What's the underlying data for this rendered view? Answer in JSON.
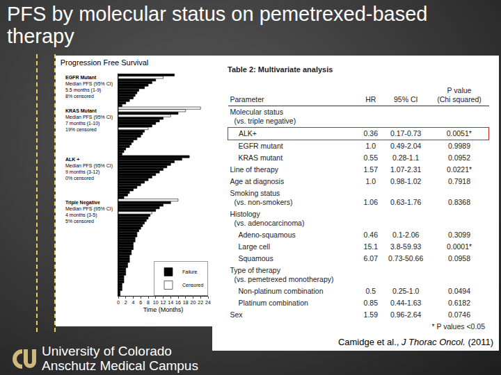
{
  "slide_title": "PFS by molecular status on pemetrexed-based therapy",
  "chart_data": {
    "type": "bar",
    "orientation": "horizontal",
    "title": "Progression Free Survival",
    "x_label": "Time (Months)",
    "categories": [
      null,
      null,
      null,
      null,
      null,
      null,
      null,
      null,
      null,
      null,
      null,
      null,
      null,
      null,
      null,
      null,
      null,
      null,
      null,
      null,
      null,
      null,
      null,
      null,
      null,
      null,
      null,
      null,
      null,
      null,
      null,
      null,
      null,
      null,
      null,
      null,
      null,
      null,
      null,
      null,
      null,
      null,
      null,
      null,
      null,
      null,
      null,
      null,
      null,
      null,
      null,
      null,
      null,
      null,
      null,
      null,
      null,
      null,
      null,
      null,
      null,
      null,
      null,
      null,
      null,
      null,
      null,
      null,
      null,
      null,
      null,
      null,
      null,
      null,
      null,
      null,
      null,
      null,
      null,
      null,
      null,
      null,
      null,
      null,
      null,
      null,
      null
    ],
    "series": [
      {
        "name": "Failure",
        "color": "#000000",
        "values": [
          15,
          null,
          10,
          9,
          8,
          7,
          5.5,
          5,
          4.5,
          4,
          3,
          2,
          1,
          null,
          null,
          16,
          null,
          12,
          11,
          10,
          9,
          null,
          7,
          6.5,
          6,
          5,
          4,
          3.5,
          3,
          2,
          1.5,
          1,
          19,
          17,
          15,
          14,
          13,
          12,
          11,
          10,
          9,
          8,
          7,
          6,
          5,
          4,
          3,
          2.5,
          1.5,
          null,
          14,
          12,
          11,
          10,
          null,
          8.5,
          8,
          7.5,
          7,
          6.5,
          6,
          5.5,
          5,
          5,
          4.5,
          4.5,
          4,
          4,
          4,
          3.5,
          3.5,
          3,
          3,
          3,
          2.5,
          2.5,
          2,
          2,
          2,
          1.5,
          1.5,
          1.5,
          1,
          1,
          1,
          0.5,
          0.5
        ]
      },
      {
        "name": "Censored",
        "color": "#ffffff",
        "values": [
          null,
          12,
          null,
          null,
          null,
          null,
          null,
          null,
          null,
          null,
          null,
          null,
          null,
          22,
          18,
          null,
          14,
          null,
          null,
          null,
          null,
          8,
          null,
          null,
          null,
          null,
          null,
          null,
          null,
          null,
          null,
          null,
          null,
          null,
          null,
          null,
          null,
          null,
          null,
          null,
          null,
          null,
          null,
          null,
          null,
          null,
          null,
          null,
          null,
          16,
          null,
          null,
          null,
          null,
          9,
          null,
          null,
          null,
          null,
          null,
          null,
          null,
          null,
          null,
          null,
          null,
          null,
          null,
          null,
          null,
          null,
          null,
          null,
          null,
          null,
          null,
          null,
          null,
          null,
          null,
          null,
          null,
          null,
          null,
          null,
          null,
          null
        ]
      }
    ],
    "xlim": [
      0,
      24
    ],
    "xticks": [
      0,
      2,
      4,
      6,
      8,
      10,
      12,
      14,
      16,
      18,
      20,
      22,
      24
    ],
    "tick_labels": "x",
    "grid": false,
    "legend": "lower right",
    "annotations": [
      {
        "category": 0,
        "lines": [
          "EGFR Mutant",
          "Median PFS (95% CI)",
          "5.5 months (1-9)",
          "8% censored"
        ]
      },
      {
        "category": 13,
        "lines": [
          "KRAS Mutant",
          "Median PFS (95% CI)",
          "7 months (1-10)",
          "19% censored"
        ]
      },
      {
        "category": 32,
        "lines": [
          "ALK +",
          "Median PFS (95% CI)",
          "9 months (3-12)",
          "0% censored"
        ]
      },
      {
        "category": 49,
        "lines": [
          "Triple Negative",
          "Median PFS (95% CI)",
          "4 months (3-5)",
          "5% censored"
        ]
      }
    ]
  },
  "table": {
    "title": "Table 2: Multivariate analysis",
    "columns": [
      [
        "Parameter"
      ],
      [
        "HR"
      ],
      [
        "95% CI"
      ],
      [
        "P value",
        "(Chi squared)"
      ]
    ],
    "rows": [
      {
        "label": [
          "Molecular status",
          "(vs. triple negative)"
        ],
        "rows": [
          {
            "label": [
              "ALK+"
            ],
            "cells": [
              "0.36",
              "0.17-0.73",
              "0.0051*"
            ],
            "highlight": true
          },
          {
            "label": [
              "EGFR mutant"
            ],
            "cells": [
              "1.0",
              "0.49-2.04",
              "0.9989"
            ]
          },
          {
            "label": [
              "KRAS mutant"
            ],
            "cells": [
              "0.55",
              "0.28-1.1",
              "0.0952"
            ]
          }
        ]
      },
      {
        "label": [
          "Line of therapy"
        ],
        "cells": [
          "1.57",
          "1.07-2.31",
          "0.0221*"
        ]
      },
      {
        "label": [
          "Age at diagnosis"
        ],
        "cells": [
          "1.0",
          "0.98-1.02",
          "0.7918"
        ]
      },
      {
        "label": [
          "Smoking status",
          "(vs. non-smokers)"
        ],
        "cells": [
          "1.06",
          "0.63-1.76",
          "0.8368"
        ]
      },
      {
        "label": [
          "Histology",
          "(vs. adenocarcinoma)"
        ],
        "rows": [
          {
            "label": [
              "Adeno-squamous"
            ],
            "cells": [
              "0.46",
              "0.1-2.06",
              "0.3099"
            ]
          },
          {
            "label": [
              "Large cell"
            ],
            "cells": [
              "15.1",
              "3.8-59.93",
              "0.0001*"
            ]
          },
          {
            "label": [
              "Squamous"
            ],
            "cells": [
              "6.07",
              "0.73-50.66",
              "0.0958"
            ]
          }
        ]
      },
      {
        "label": [
          "Type of therapy",
          "(vs. pemetrexed monotherapy)"
        ],
        "rows": [
          {
            "label": [
              "Non-platinum combination"
            ],
            "cells": [
              "0.5",
              "0.25-1.0",
              "0.0494"
            ]
          },
          {
            "label": [
              "Platinum combination"
            ],
            "cells": [
              "0.85",
              "0.44-1.63",
              "0.6182"
            ]
          }
        ]
      },
      {
        "label": [
          "Sex"
        ],
        "cells": [
          "1.59",
          "0.96-2.64",
          "0.0746"
        ]
      }
    ],
    "footnote": "* P values <0.05"
  },
  "citation": {
    "authors": "Camidge et al.,",
    "journal": "J Thorac Oncol.",
    "year": "(2011)"
  },
  "footer": {
    "institution": [
      "University of Colorado",
      "Anschutz Medical Campus"
    ]
  }
}
